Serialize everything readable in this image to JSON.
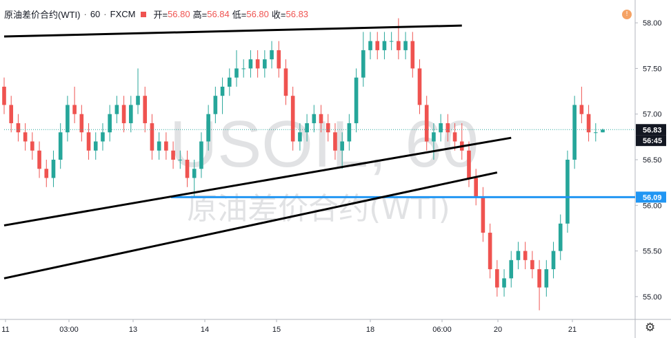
{
  "legend": {
    "symbol": "原油差价合约(WTI)",
    "interval": "60",
    "source": "FXCM",
    "open_label": "开=",
    "open": "56.80",
    "high_label": "高=",
    "high": "56.84",
    "low_label": "低=",
    "low": "56.80",
    "close_label": "收=",
    "close": "56.83"
  },
  "watermark": {
    "ticker": "USOIL, 60",
    "name": "原油差价合约(WTI)"
  },
  "alert_icon": "clock-icon",
  "settings_icon": "gear-icon",
  "colors": {
    "up": "#26a69a",
    "down": "#ef5350",
    "hline": "#2196f3",
    "trend": "#000000",
    "price_tag": "#131722",
    "hline_tag": "#2196f3"
  },
  "chart_data": {
    "type": "candlestick",
    "ylim": [
      54.75,
      58.25
    ],
    "y_ticks": [
      "58.00",
      "57.50",
      "57.00",
      "56.50",
      "56.00",
      "55.50",
      "55.00"
    ],
    "x_ticks": [
      "11",
      "03:00",
      "13",
      "14",
      "15",
      "18",
      "06:00",
      "20",
      "21"
    ],
    "price_labels": [
      {
        "text": "56.83",
        "value": 56.83
      },
      {
        "text": "56:45",
        "value": 56.71
      },
      {
        "text": "56.09",
        "value": 56.09
      }
    ],
    "horizontal_line": 56.09,
    "trendlines": [
      {
        "x1": 0,
        "y1": 57.85,
        "x2": 65,
        "y2": 57.97
      },
      {
        "x1": 0,
        "y1": 55.78,
        "x2": 72,
        "y2": 56.74
      },
      {
        "x1": 0,
        "y1": 55.2,
        "x2": 70,
        "y2": 56.36
      }
    ],
    "candles": [
      {
        "o": 57.3,
        "h": 57.4,
        "l": 57.0,
        "c": 57.1
      },
      {
        "o": 57.1,
        "h": 57.2,
        "l": 56.8,
        "c": 56.9
      },
      {
        "o": 56.9,
        "h": 57.0,
        "l": 56.7,
        "c": 56.8
      },
      {
        "o": 56.8,
        "h": 56.9,
        "l": 56.6,
        "c": 56.7
      },
      {
        "o": 56.7,
        "h": 56.8,
        "l": 56.5,
        "c": 56.6
      },
      {
        "o": 56.6,
        "h": 56.7,
        "l": 56.3,
        "c": 56.4
      },
      {
        "o": 56.4,
        "h": 56.5,
        "l": 56.2,
        "c": 56.3
      },
      {
        "o": 56.3,
        "h": 56.6,
        "l": 56.2,
        "c": 56.5
      },
      {
        "o": 56.5,
        "h": 56.9,
        "l": 56.4,
        "c": 56.8
      },
      {
        "o": 56.8,
        "h": 57.2,
        "l": 56.7,
        "c": 57.1
      },
      {
        "o": 57.1,
        "h": 57.3,
        "l": 56.9,
        "c": 57.0
      },
      {
        "o": 57.0,
        "h": 57.1,
        "l": 56.7,
        "c": 56.8
      },
      {
        "o": 56.8,
        "h": 56.9,
        "l": 56.5,
        "c": 56.6
      },
      {
        "o": 56.6,
        "h": 56.8,
        "l": 56.5,
        "c": 56.7
      },
      {
        "o": 56.7,
        "h": 56.9,
        "l": 56.6,
        "c": 56.8
      },
      {
        "o": 56.8,
        "h": 57.1,
        "l": 56.7,
        "c": 57.0
      },
      {
        "o": 57.0,
        "h": 57.2,
        "l": 56.9,
        "c": 57.1
      },
      {
        "o": 57.1,
        "h": 57.2,
        "l": 56.8,
        "c": 56.9
      },
      {
        "o": 56.9,
        "h": 57.2,
        "l": 56.8,
        "c": 57.1
      },
      {
        "o": 57.1,
        "h": 57.5,
        "l": 57.0,
        "c": 57.2
      },
      {
        "o": 57.2,
        "h": 57.3,
        "l": 56.8,
        "c": 56.9
      },
      {
        "o": 56.9,
        "h": 57.0,
        "l": 56.5,
        "c": 56.6
      },
      {
        "o": 56.6,
        "h": 56.8,
        "l": 56.5,
        "c": 56.7
      },
      {
        "o": 56.7,
        "h": 56.8,
        "l": 56.5,
        "c": 56.6
      },
      {
        "o": 56.6,
        "h": 56.7,
        "l": 56.4,
        "c": 56.5
      },
      {
        "o": 56.5,
        "h": 56.6,
        "l": 56.4,
        "c": 56.5
      },
      {
        "o": 56.5,
        "h": 56.6,
        "l": 56.2,
        "c": 56.3
      },
      {
        "o": 56.3,
        "h": 56.5,
        "l": 56.1,
        "c": 56.4
      },
      {
        "o": 56.4,
        "h": 56.8,
        "l": 56.3,
        "c": 56.7
      },
      {
        "o": 56.7,
        "h": 57.1,
        "l": 56.6,
        "c": 57.0
      },
      {
        "o": 57.0,
        "h": 57.3,
        "l": 56.9,
        "c": 57.2
      },
      {
        "o": 57.2,
        "h": 57.4,
        "l": 57.0,
        "c": 57.3
      },
      {
        "o": 57.3,
        "h": 57.5,
        "l": 57.2,
        "c": 57.4
      },
      {
        "o": 57.4,
        "h": 57.7,
        "l": 57.3,
        "c": 57.5
      },
      {
        "o": 57.5,
        "h": 57.6,
        "l": 57.4,
        "c": 57.5
      },
      {
        "o": 57.5,
        "h": 57.7,
        "l": 57.4,
        "c": 57.6
      },
      {
        "o": 57.6,
        "h": 57.7,
        "l": 57.4,
        "c": 57.5
      },
      {
        "o": 57.5,
        "h": 57.7,
        "l": 57.4,
        "c": 57.6
      },
      {
        "o": 57.6,
        "h": 57.8,
        "l": 57.5,
        "c": 57.7
      },
      {
        "o": 57.7,
        "h": 57.8,
        "l": 57.4,
        "c": 57.5
      },
      {
        "o": 57.5,
        "h": 57.6,
        "l": 57.1,
        "c": 57.2
      },
      {
        "o": 57.2,
        "h": 57.3,
        "l": 56.6,
        "c": 56.7
      },
      {
        "o": 56.7,
        "h": 56.9,
        "l": 56.6,
        "c": 56.8
      },
      {
        "o": 56.8,
        "h": 57.0,
        "l": 56.7,
        "c": 56.9
      },
      {
        "o": 56.9,
        "h": 57.1,
        "l": 56.8,
        "c": 57.0
      },
      {
        "o": 57.0,
        "h": 57.1,
        "l": 56.8,
        "c": 56.9
      },
      {
        "o": 56.9,
        "h": 57.0,
        "l": 56.7,
        "c": 56.8
      },
      {
        "o": 56.8,
        "h": 56.9,
        "l": 56.5,
        "c": 56.6
      },
      {
        "o": 56.6,
        "h": 56.8,
        "l": 56.4,
        "c": 56.7
      },
      {
        "o": 56.7,
        "h": 57.0,
        "l": 56.6,
        "c": 56.9
      },
      {
        "o": 56.9,
        "h": 57.5,
        "l": 56.8,
        "c": 57.4
      },
      {
        "o": 57.4,
        "h": 57.9,
        "l": 57.3,
        "c": 57.7
      },
      {
        "o": 57.7,
        "h": 57.9,
        "l": 57.6,
        "c": 57.8
      },
      {
        "o": 57.8,
        "h": 57.9,
        "l": 57.6,
        "c": 57.7
      },
      {
        "o": 57.7,
        "h": 57.9,
        "l": 57.6,
        "c": 57.8
      },
      {
        "o": 57.8,
        "h": 57.9,
        "l": 57.7,
        "c": 57.8
      },
      {
        "o": 57.8,
        "h": 58.05,
        "l": 57.6,
        "c": 57.7
      },
      {
        "o": 57.7,
        "h": 57.9,
        "l": 57.6,
        "c": 57.8
      },
      {
        "o": 57.8,
        "h": 57.9,
        "l": 57.4,
        "c": 57.5
      },
      {
        "o": 57.5,
        "h": 57.6,
        "l": 57.0,
        "c": 57.1
      },
      {
        "o": 57.1,
        "h": 57.2,
        "l": 56.6,
        "c": 56.7
      },
      {
        "o": 56.7,
        "h": 56.9,
        "l": 56.5,
        "c": 56.8
      },
      {
        "o": 56.8,
        "h": 57.0,
        "l": 56.7,
        "c": 56.9
      },
      {
        "o": 56.9,
        "h": 57.0,
        "l": 56.7,
        "c": 56.8
      },
      {
        "o": 56.8,
        "h": 56.9,
        "l": 56.6,
        "c": 56.7
      },
      {
        "o": 56.7,
        "h": 56.9,
        "l": 56.5,
        "c": 56.6
      },
      {
        "o": 56.6,
        "h": 56.7,
        "l": 56.2,
        "c": 56.3
      },
      {
        "o": 56.3,
        "h": 56.4,
        "l": 56.0,
        "c": 56.1
      },
      {
        "o": 56.1,
        "h": 56.2,
        "l": 55.6,
        "c": 55.7
      },
      {
        "o": 55.7,
        "h": 55.8,
        "l": 55.2,
        "c": 55.3
      },
      {
        "o": 55.3,
        "h": 55.4,
        "l": 55.0,
        "c": 55.1
      },
      {
        "o": 55.1,
        "h": 55.3,
        "l": 55.0,
        "c": 55.2
      },
      {
        "o": 55.2,
        "h": 55.5,
        "l": 55.1,
        "c": 55.4
      },
      {
        "o": 55.4,
        "h": 55.6,
        "l": 55.3,
        "c": 55.5
      },
      {
        "o": 55.5,
        "h": 55.6,
        "l": 55.3,
        "c": 55.4
      },
      {
        "o": 55.4,
        "h": 55.5,
        "l": 55.2,
        "c": 55.3
      },
      {
        "o": 55.3,
        "h": 55.4,
        "l": 54.85,
        "c": 55.1
      },
      {
        "o": 55.1,
        "h": 55.4,
        "l": 55.0,
        "c": 55.3
      },
      {
        "o": 55.3,
        "h": 55.6,
        "l": 55.2,
        "c": 55.5
      },
      {
        "o": 55.5,
        "h": 55.9,
        "l": 55.4,
        "c": 55.8
      },
      {
        "o": 55.8,
        "h": 56.6,
        "l": 55.7,
        "c": 56.5
      },
      {
        "o": 56.5,
        "h": 57.2,
        "l": 56.4,
        "c": 57.1
      },
      {
        "o": 57.1,
        "h": 57.3,
        "l": 56.9,
        "c": 57.0
      },
      {
        "o": 57.0,
        "h": 57.1,
        "l": 56.7,
        "c": 56.8
      },
      {
        "o": 56.8,
        "h": 56.9,
        "l": 56.7,
        "c": 56.8
      },
      {
        "o": 56.8,
        "h": 56.84,
        "l": 56.8,
        "c": 56.83
      }
    ]
  }
}
